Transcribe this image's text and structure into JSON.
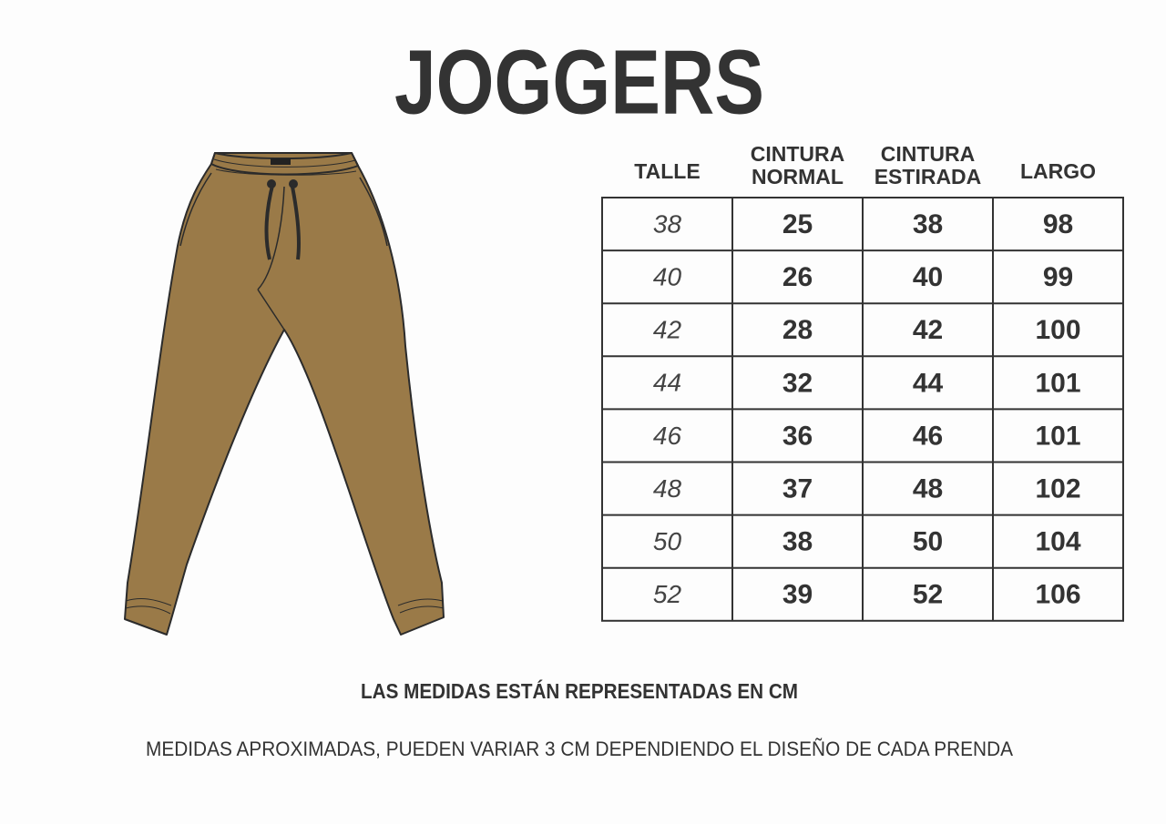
{
  "header": {
    "title": "JOGGERS"
  },
  "table": {
    "headers": [
      [
        "TALLE"
      ],
      [
        "CINTURA",
        "NORMAL"
      ],
      [
        "CINTURA",
        "ESTIRADA"
      ],
      [
        "LARGO"
      ]
    ],
    "rows": [
      [
        38,
        25,
        38,
        98
      ],
      [
        40,
        26,
        40,
        99
      ],
      [
        42,
        28,
        42,
        100
      ],
      [
        44,
        32,
        44,
        101
      ],
      [
        46,
        36,
        46,
        101
      ],
      [
        48,
        37,
        48,
        102
      ],
      [
        50,
        38,
        50,
        104
      ],
      [
        52,
        39,
        52,
        106
      ]
    ]
  },
  "notes": [
    "LAS MEDIDAS ESTÁN REPRESENTADAS EN CM",
    "MEDIDAS APROXIMADAS, PUEDEN VARIAR 3 CM DEPENDIENDO EL DISEÑO DE CADA PRENDA"
  ]
}
